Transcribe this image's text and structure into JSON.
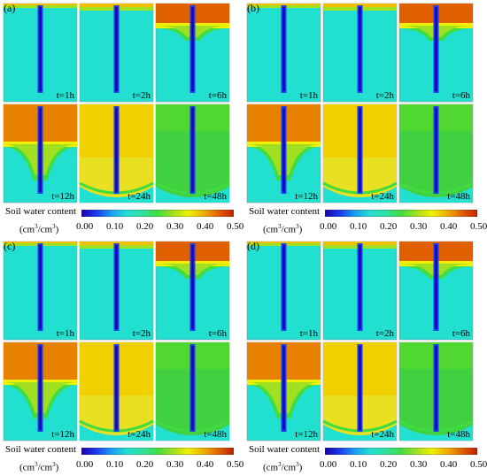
{
  "panels": [
    {
      "label": "(a)",
      "times": [
        "t=1h",
        "t=2h",
        "t=6h",
        "t=12h",
        "t=24h",
        "t=48h"
      ]
    },
    {
      "label": "(b)",
      "times": [
        "t=1h",
        "t=2h",
        "t=6h",
        "t=12h",
        "t=24h",
        "t=48h"
      ]
    },
    {
      "label": "(c)",
      "times": [
        "t=1h",
        "t=2h",
        "t=6h",
        "t=12h",
        "t=24h",
        "t=48h"
      ]
    },
    {
      "label": "(d)",
      "times": [
        "t=1h",
        "t=2h",
        "t=6h",
        "t=12h",
        "t=24h",
        "t=48h"
      ]
    }
  ],
  "colorbar": {
    "title": "Soil water content",
    "unit_prefix": "(cm",
    "unit_sup1": "3",
    "unit_mid": "/cm",
    "unit_sup2": "3",
    "unit_suffix": ")",
    "ticks": [
      "0.00",
      "0.10",
      "0.20",
      "0.30",
      "0.40",
      "0.50"
    ],
    "colors": [
      "#1a00b0",
      "#1a3cf0",
      "#1aa0f0",
      "#22e0d0",
      "#30e0a0",
      "#40dc40",
      "#a0e020",
      "#f0f000",
      "#f0b000",
      "#e06000",
      "#c02000"
    ]
  }
}
